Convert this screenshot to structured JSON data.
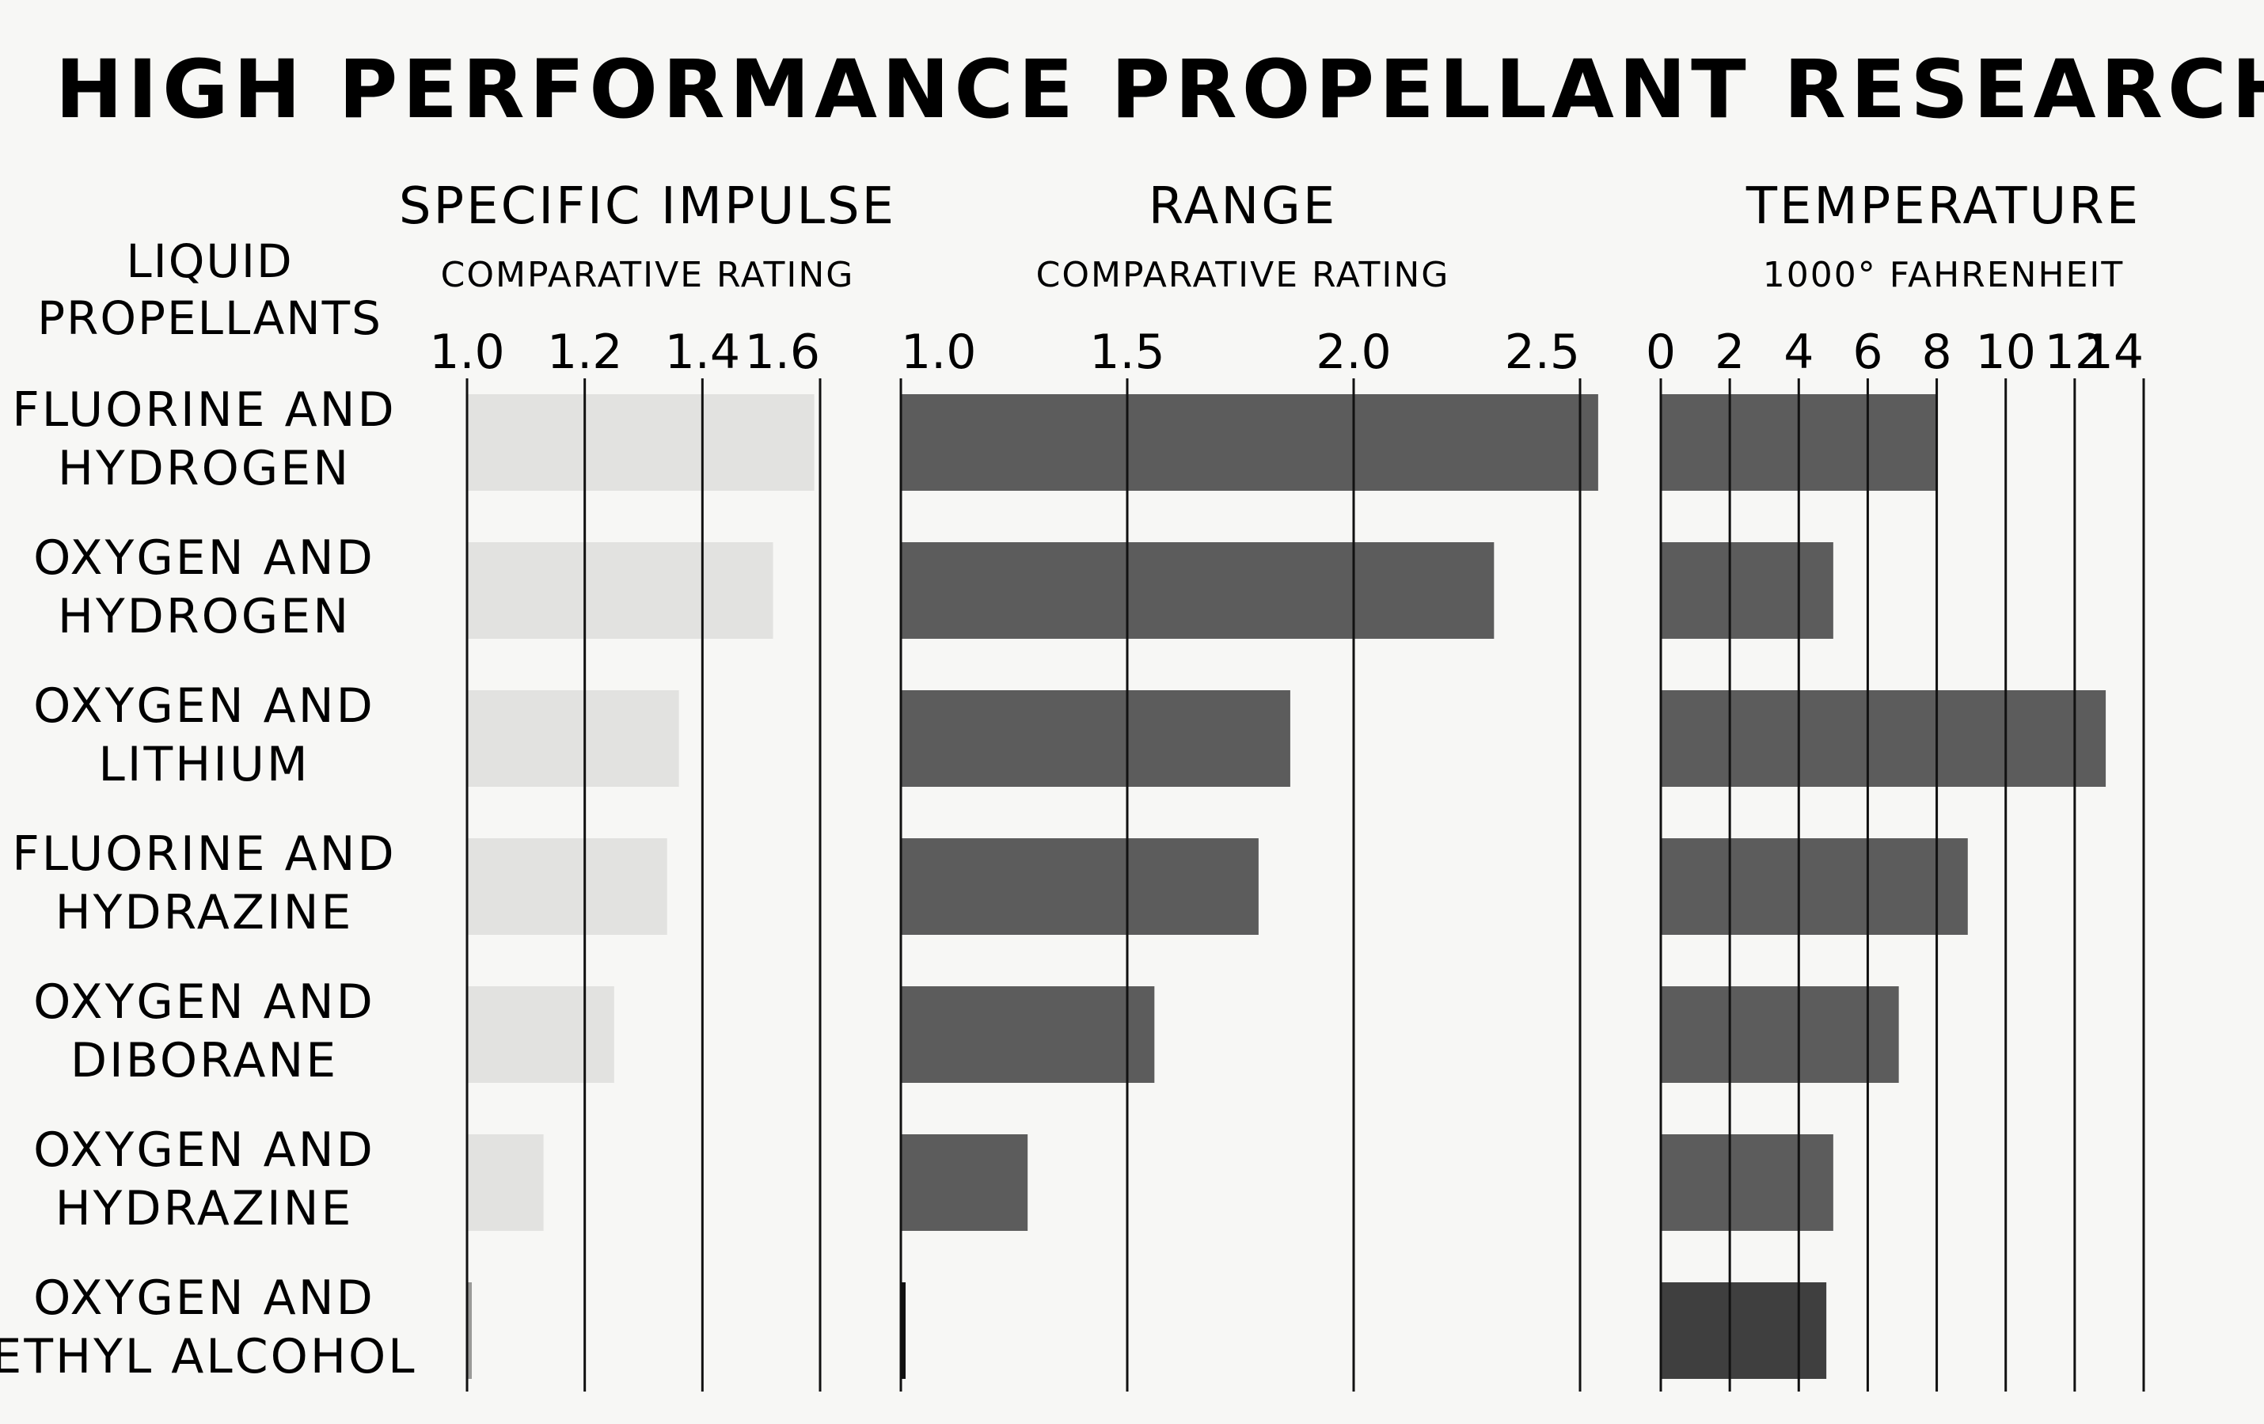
{
  "title": "HIGH PERFORMANCE PROPELLANT RESEARCH",
  "row_header": [
    "LIQUID",
    "PROPELLANTS"
  ],
  "colors": {
    "background": "#f7f7f5",
    "light_bar": "#e2e2e0",
    "dark_bar": "#5c5c5c",
    "darkest_bar": "#3f3f3f",
    "grid": "#111111"
  },
  "chart_data": [
    {
      "type": "bar",
      "orientation": "horizontal",
      "title": "SPECIFIC IMPULSE",
      "subtitle": "COMPARATIVE RATING",
      "categories": [
        [
          "FLUORINE AND",
          "HYDROGEN"
        ],
        [
          "OXYGEN AND",
          "HYDROGEN"
        ],
        [
          "OXYGEN AND",
          "LITHIUM"
        ],
        [
          "FLUORINE AND",
          "HYDRAZINE"
        ],
        [
          "OXYGEN AND",
          "DIBORANE"
        ],
        [
          "OXYGEN AND",
          "HYDRAZINE"
        ],
        [
          "OXYGEN AND",
          "ETHYL ALCOHOL"
        ]
      ],
      "values": [
        1.59,
        1.52,
        1.36,
        1.34,
        1.25,
        1.13,
        1.0
      ],
      "xlim": [
        1.0,
        1.6
      ],
      "ticks": [
        1.0,
        1.2,
        1.4,
        1.6
      ],
      "tick_labels": [
        "1.0",
        "1.2",
        "1.4",
        "1.6"
      ],
      "bar_color": "#e2e2e0",
      "grid": true
    },
    {
      "type": "bar",
      "orientation": "horizontal",
      "title": "RANGE",
      "subtitle": "COMPARATIVE RATING",
      "categories": [
        [
          "FLUORINE AND",
          "HYDROGEN"
        ],
        [
          "OXYGEN AND",
          "HYDROGEN"
        ],
        [
          "OXYGEN AND",
          "LITHIUM"
        ],
        [
          "FLUORINE AND",
          "HYDRAZINE"
        ],
        [
          "OXYGEN AND",
          "DIBORANE"
        ],
        [
          "OXYGEN AND",
          "HYDRAZINE"
        ],
        [
          "OXYGEN AND",
          "ETHYL ALCOHOL"
        ]
      ],
      "values": [
        2.54,
        2.31,
        1.86,
        1.79,
        1.56,
        1.28,
        1.0
      ],
      "xlim": [
        1.0,
        2.5
      ],
      "ticks": [
        1.0,
        1.5,
        2.0,
        2.5
      ],
      "tick_labels": [
        "1.0",
        "1.5",
        "2.0",
        "2.5"
      ],
      "bar_color": "#5c5c5c",
      "grid": true
    },
    {
      "type": "bar",
      "orientation": "horizontal",
      "title": "TEMPERATURE",
      "subtitle": "1000° FAHRENHEIT",
      "categories": [
        [
          "FLUORINE AND",
          "HYDROGEN"
        ],
        [
          "OXYGEN AND",
          "HYDROGEN"
        ],
        [
          "OXYGEN AND",
          "LITHIUM"
        ],
        [
          "FLUORINE AND",
          "HYDRAZINE"
        ],
        [
          "OXYGEN AND",
          "DIBORANE"
        ],
        [
          "OXYGEN AND",
          "HYDRAZINE"
        ],
        [
          "OXYGEN AND",
          "ETHYL ALCOHOL"
        ]
      ],
      "values": [
        8.0,
        5.0,
        12.9,
        8.9,
        6.9,
        5.0,
        4.8
      ],
      "xlim": [
        0,
        14
      ],
      "ticks": [
        0,
        2,
        4,
        6,
        8,
        10,
        12,
        14
      ],
      "tick_labels": [
        "0",
        "2",
        "4",
        "6",
        "8",
        "10",
        "12",
        "14"
      ],
      "bar_color": "#5c5c5c",
      "grid": true
    }
  ]
}
